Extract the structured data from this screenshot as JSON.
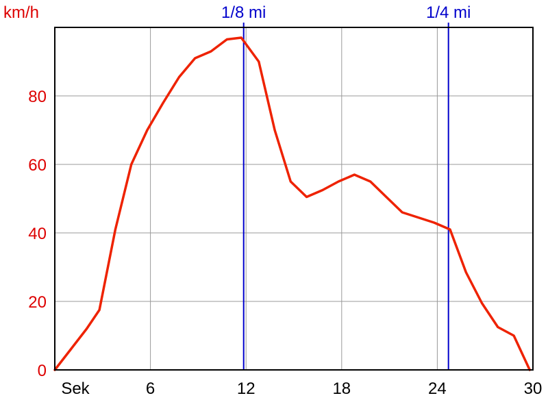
{
  "chart_data": {
    "type": "line",
    "ylabel": "km/h",
    "xlabel": "Sek",
    "xlim": [
      0,
      30
    ],
    "ylim": [
      0,
      100
    ],
    "x_ticks": [
      6,
      12,
      18,
      24,
      30
    ],
    "y_ticks": [
      0,
      20,
      40,
      60,
      80
    ],
    "grid": true,
    "series": [
      {
        "color": "#ee2200",
        "x": [
          0,
          1,
          2,
          2.8,
          3.8,
          4.8,
          5.8,
          6.8,
          7.8,
          8.8,
          9.8,
          10.8,
          11.7,
          12.8,
          13.8,
          14.8,
          15.8,
          16.8,
          17.8,
          18.8,
          19.8,
          20.8,
          21.8,
          22.8,
          23.8,
          24.8,
          25.8,
          26.8,
          27.8,
          28.8,
          29.8
        ],
        "y": [
          0,
          6,
          12,
          17.5,
          41,
          60,
          70,
          78,
          85.5,
          91,
          93,
          96.5,
          97,
          90,
          70,
          55,
          50.5,
          52.5,
          55,
          57,
          55,
          50.5,
          46,
          44.5,
          43,
          41,
          28.5,
          19.5,
          12.5,
          10,
          0
        ]
      }
    ],
    "markers": [
      {
        "label": "1/8 mi",
        "x": 11.85,
        "color": "#0000cc"
      },
      {
        "label": "1/4 mi",
        "x": 24.7,
        "color": "#0000cc"
      }
    ]
  }
}
